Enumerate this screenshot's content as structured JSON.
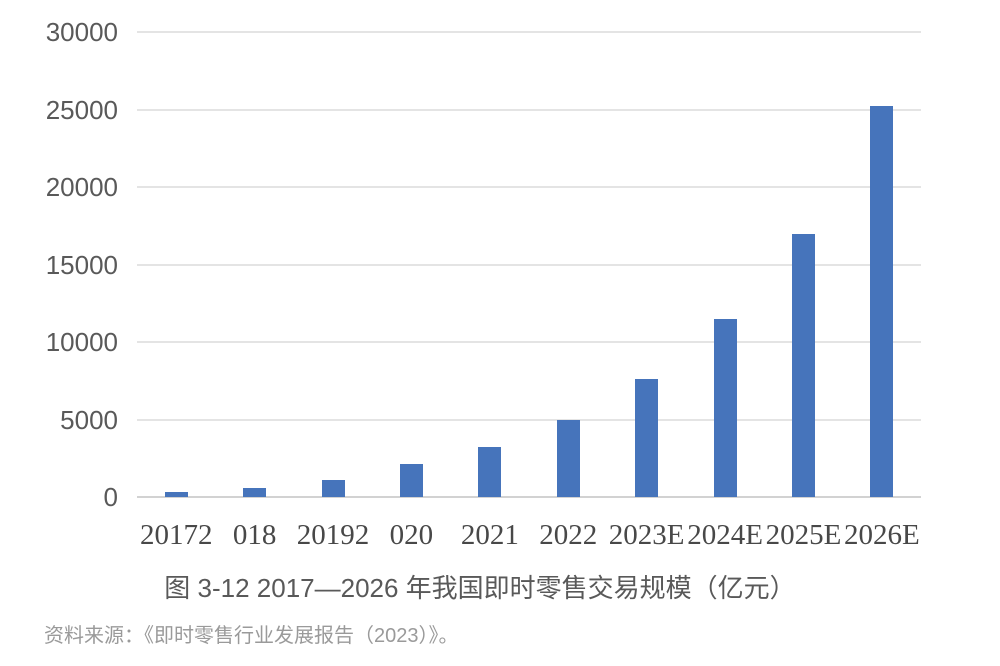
{
  "chart_data": {
    "type": "bar",
    "years": [
      "2017",
      "2018",
      "2019",
      "2020",
      "2021",
      "2022",
      "2023E",
      "2024E",
      "2025E",
      "2026E"
    ],
    "x_tick_labels_rendered": [
      "20172",
      "018",
      "20192",
      "020",
      "2021",
      "2022",
      "2023E",
      "2024E",
      "2025E",
      "2026E"
    ],
    "values": [
      300,
      600,
      1100,
      2100,
      3200,
      5000,
      7600,
      11500,
      17000,
      25200
    ],
    "y_ticks": [
      0,
      5000,
      10000,
      15000,
      20000,
      25000,
      30000
    ],
    "ylim": [
      0,
      30000
    ],
    "grid": "horizontal",
    "legend": "none",
    "bar_color": "#4674bb",
    "caption": "图 3-12 2017—2026 年我国即时零售交易规模（亿元）",
    "source": "资料来源：《即时零售行业发展报告（2023）》。"
  }
}
